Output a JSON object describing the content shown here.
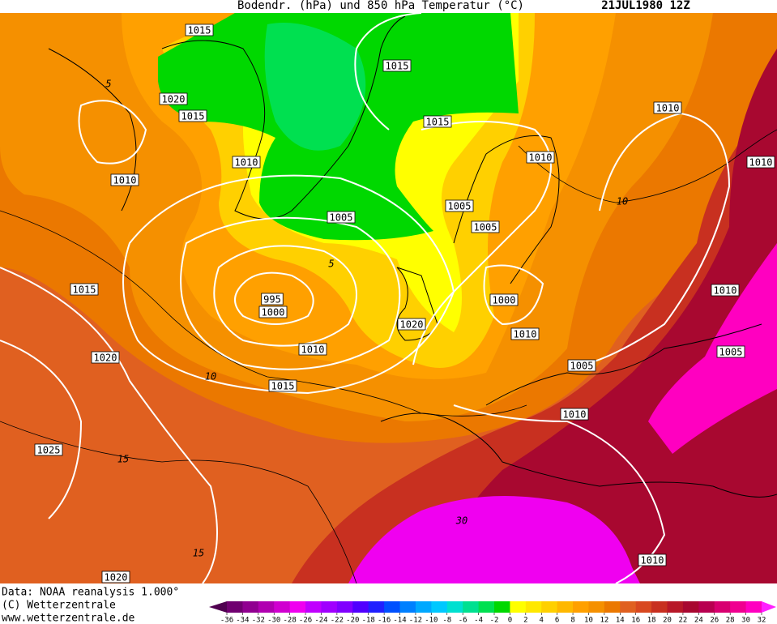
{
  "title": "Bodendr. (hPa) und 850 hPa Temperatur (°C)",
  "date": "21JUL1980 12Z",
  "pressure_labels": [
    "1015",
    "1020",
    "1015",
    "1010",
    "1010",
    "1015",
    "1015",
    "1005",
    "995",
    "1000",
    "1015",
    "1020",
    "1010",
    "1015",
    "1025",
    "1020",
    "1020",
    "1005",
    "1005",
    "1000",
    "1010",
    "1010",
    "1010",
    "1010",
    "1010",
    "1005",
    "1005",
    "1010",
    "1010"
  ],
  "temperature_labels": [
    "5",
    "10",
    "15",
    "15",
    "10",
    "5",
    "30"
  ],
  "footer": [
    "Data: NOAA reanalysis 1.000°",
    "(C) Wetterzentrale",
    "www.wetterzentrale.de"
  ],
  "colorbar": {
    "labels": [
      -36,
      -34,
      -32,
      -30,
      -28,
      -26,
      -24,
      -22,
      -20,
      -18,
      -16,
      -14,
      -12,
      -10,
      -8,
      -6,
      -4,
      -2,
      0,
      2,
      4,
      6,
      8,
      10,
      12,
      14,
      16,
      18,
      20,
      22,
      24,
      26,
      28,
      30,
      32
    ],
    "colors": [
      "#500050",
      "#700070",
      "#900090",
      "#b000b0",
      "#d000d0",
      "#f000f0",
      "#c000ff",
      "#a000ff",
      "#8000ff",
      "#5000ff",
      "#2020ff",
      "#0050ff",
      "#0080ff",
      "#00a8ff",
      "#00c8ff",
      "#00e0d0",
      "#00e090",
      "#00e050",
      "#00d800",
      "#ffff00",
      "#ffe800",
      "#ffd000",
      "#ffb800",
      "#ffa000",
      "#f59000",
      "#eb7800",
      "#e06020",
      "#d84820",
      "#c83020",
      "#b81828",
      "#a80830",
      "#b80050",
      "#d80070",
      "#f00090",
      "#ff00c0",
      "#ff20ff"
    ]
  }
}
